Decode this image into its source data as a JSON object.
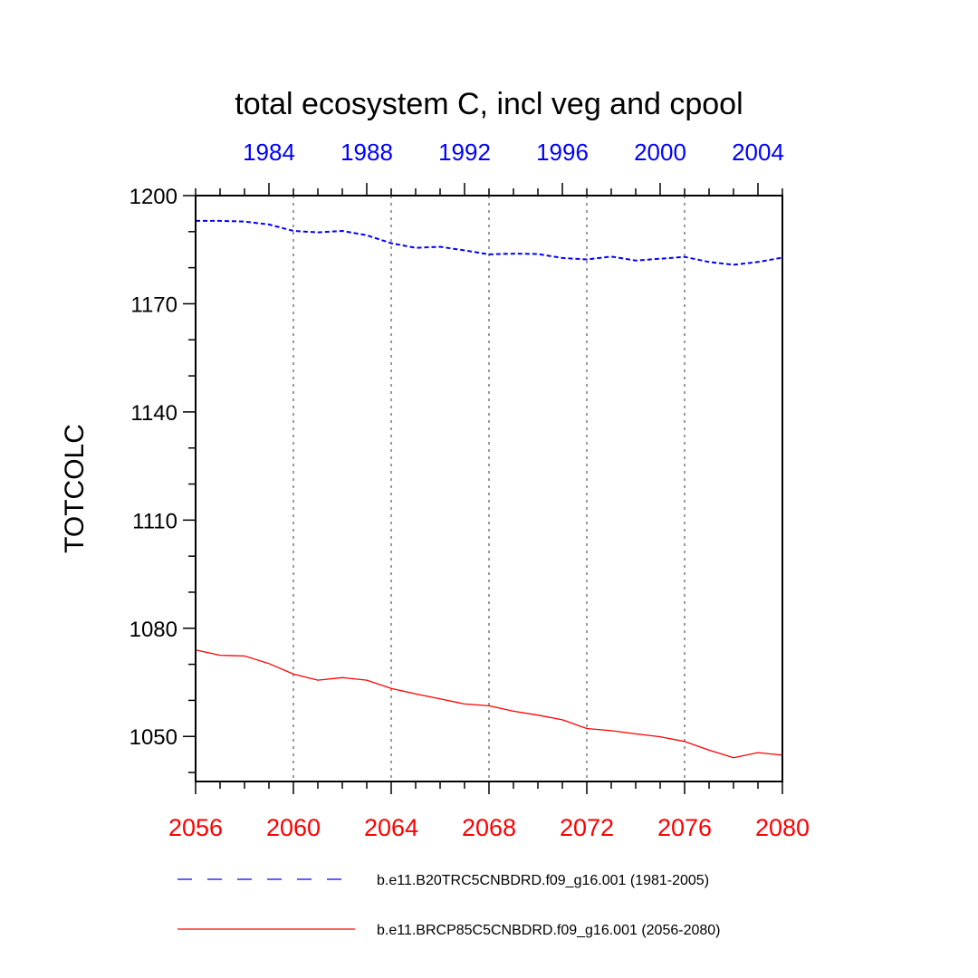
{
  "chart_data": {
    "type": "line",
    "title": "total ecosystem C, incl veg and cpool",
    "ylabel": "TOTCOLC",
    "ylim": [
      1037.5,
      1200
    ],
    "yticks": [
      1050,
      1080,
      1110,
      1140,
      1170,
      1200
    ],
    "y_minor_step": 10,
    "grid": "vertical dotted at bottom-axis major ticks",
    "bottom_axis": {
      "color": "#ff0000",
      "xlim": [
        2056,
        2080
      ],
      "ticks": [
        2056,
        2060,
        2064,
        2068,
        2072,
        2076,
        2080
      ],
      "minor_step": 1
    },
    "top_axis": {
      "color": "#0000ff",
      "xlim": [
        1981,
        2005
      ],
      "ticks": [
        1984,
        1988,
        1992,
        1996,
        2000,
        2004
      ],
      "minor_step": 1
    },
    "series": [
      {
        "name": "b.e11.B20TRC5CNBDRD.f09_g16.001 (1981-2005)",
        "axis": "top",
        "color": "#0000ff",
        "dash": "dashed",
        "x": [
          1981,
          1982,
          1983,
          1984,
          1985,
          1986,
          1987,
          1988,
          1989,
          1990,
          1991,
          1992,
          1993,
          1994,
          1995,
          1996,
          1997,
          1998,
          1999,
          2000,
          2001,
          2002,
          2003,
          2004,
          2005
        ],
        "values": [
          1193,
          1193,
          1192.8,
          1192,
          1190.2,
          1189.8,
          1190.2,
          1189,
          1186.8,
          1185.5,
          1185.8,
          1184.8,
          1183.7,
          1183.9,
          1183.8,
          1182.7,
          1182.3,
          1183.1,
          1182,
          1182.5,
          1183,
          1181.6,
          1180.8,
          1181.6,
          1182.8
        ]
      },
      {
        "name": "b.e11.BRCP85C5CNBDRD.f09_g16.001 (2056-2080)",
        "axis": "bottom",
        "color": "#ff0000",
        "dash": "solid",
        "x": [
          2056,
          2057,
          2058,
          2059,
          2060,
          2061,
          2062,
          2063,
          2064,
          2065,
          2066,
          2067,
          2068,
          2069,
          2070,
          2071,
          2072,
          2073,
          2074,
          2075,
          2076,
          2077,
          2078,
          2079,
          2080
        ],
        "values": [
          1074,
          1072.5,
          1072.3,
          1070.2,
          1067.3,
          1065.6,
          1066.3,
          1065.6,
          1063.3,
          1061.8,
          1060.4,
          1059,
          1058.5,
          1057,
          1055.9,
          1054.6,
          1052.2,
          1051.6,
          1050.7,
          1049.9,
          1048.6,
          1046.2,
          1044.1,
          1045.5,
          1044.8
        ]
      }
    ],
    "legend": {
      "position": "bottom",
      "entries": [
        "b.e11.B20TRC5CNBDRD.f09_g16.001 (1981-2005)",
        "b.e11.BRCP85C5CNBDRD.f09_g16.001 (2056-2080)"
      ]
    }
  }
}
